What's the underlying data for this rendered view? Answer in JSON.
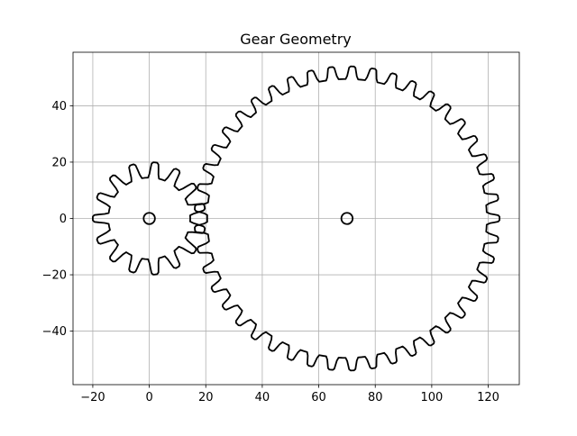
{
  "chart_data": {
    "type": "line",
    "title": "Gear Geometry",
    "xlabel": "",
    "ylabel": "",
    "xlim": [
      -27,
      131
    ],
    "ylim": [
      -59,
      59
    ],
    "xticks": [
      -20,
      0,
      20,
      40,
      60,
      80,
      100,
      120
    ],
    "yticks": [
      -40,
      -20,
      0,
      20,
      40
    ],
    "xtick_labels": [
      "−20",
      "0",
      "20",
      "40",
      "60",
      "80",
      "100",
      "120"
    ],
    "ytick_labels": [
      "−40",
      "−20",
      "0",
      "20",
      "40"
    ],
    "grid": true,
    "line_color": "#000000",
    "grid_color": "#b0b0b0",
    "gears": [
      {
        "name": "",
        "center": [
          0,
          0
        ],
        "teeth": 15,
        "root_radius": 14.5,
        "tip_radius": 20,
        "phase_deg": 0,
        "hub_radius": 2
      },
      {
        "name": "",
        "center": [
          70,
          0
        ],
        "teeth": 45,
        "root_radius": 49.5,
        "tip_radius": 54,
        "phase_deg": 4,
        "hub_radius": 2
      }
    ]
  }
}
